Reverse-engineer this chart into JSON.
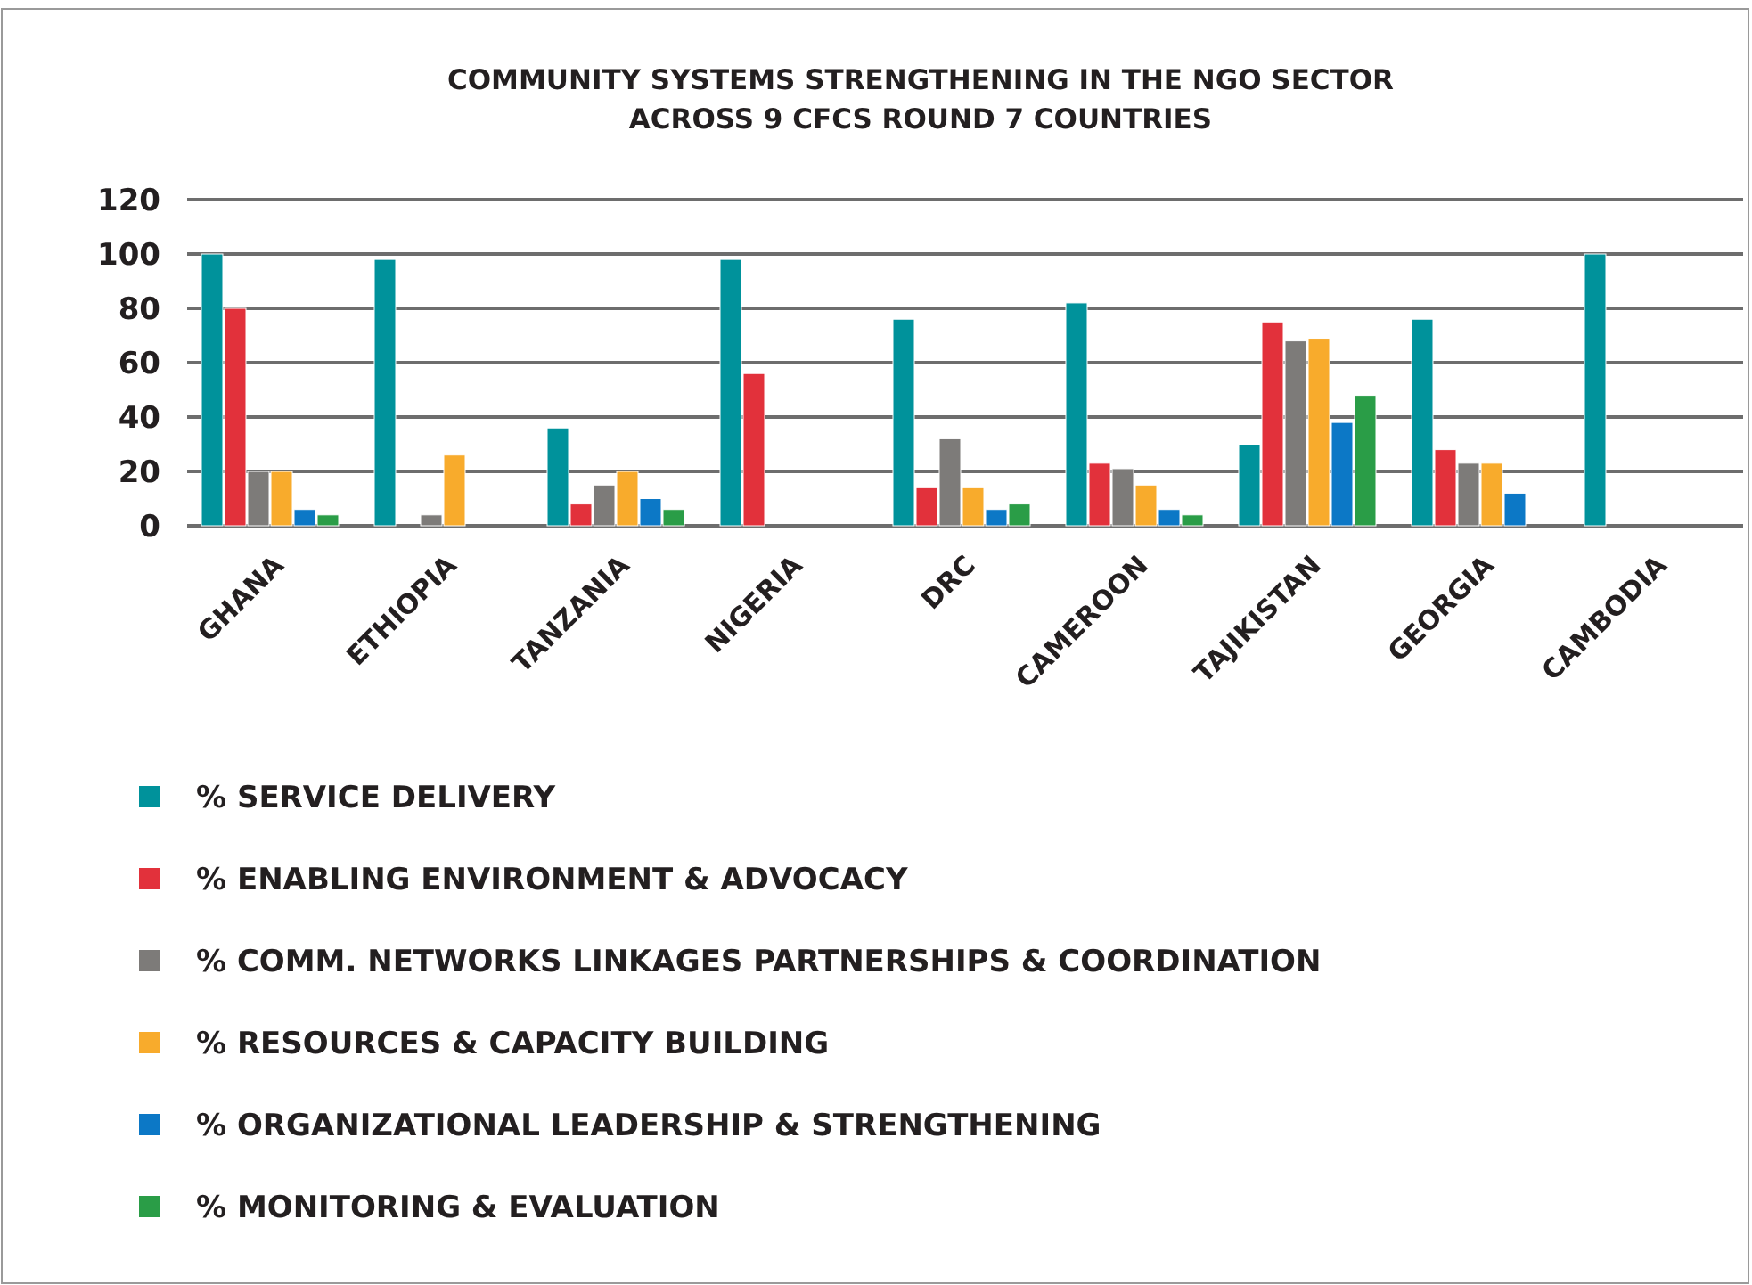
{
  "chart_data": {
    "type": "bar",
    "title": "COMMUNITY SYSTEMS STRENGTHENING IN THE NGO SECTOR\nACROSS 9 CFCS ROUND 7 COUNTRIES",
    "categories": [
      "GHANA",
      "ETHIOPIA",
      "TANZANIA",
      "NIGERIA",
      "DRC",
      "CAMEROON",
      "TAJIKISTAN",
      "GEORGIA",
      "CAMBODIA"
    ],
    "series": [
      {
        "name": "% SERVICE DELIVERY",
        "color": "#00929b",
        "values": [
          100,
          98,
          36,
          98,
          76,
          82,
          30,
          76,
          100
        ]
      },
      {
        "name": "% ENABLING ENVIRONMENT & ADVOCACY",
        "color": "#e2313b",
        "values": [
          80,
          null,
          8,
          56,
          14,
          23,
          75,
          28,
          null
        ]
      },
      {
        "name": "% COMM. NETWORKS LINKAGES PARTNERSHIPS & COORDINATION",
        "color": "#7d7b79",
        "values": [
          20,
          4,
          15,
          null,
          32,
          21,
          68,
          23,
          null
        ]
      },
      {
        "name": "% RESOURCES & CAPACITY BUILDING",
        "color": "#f8ab2c",
        "values": [
          20,
          26,
          20,
          null,
          14,
          15,
          69,
          23,
          null
        ]
      },
      {
        "name": "% ORGANIZATIONAL LEADERSHIP & STRENGTHENING",
        "color": "#0c78c6",
        "values": [
          6,
          null,
          10,
          null,
          6,
          6,
          38,
          12,
          null
        ]
      },
      {
        "name": "% MONITORING & EVALUATION",
        "color": "#2a9d47",
        "values": [
          4,
          null,
          6,
          null,
          8,
          4,
          48,
          null,
          null
        ]
      }
    ],
    "ylim": [
      0,
      120
    ],
    "yticks": [
      0,
      20,
      40,
      60,
      80,
      100,
      120
    ],
    "grid": "y",
    "legend": "bottom"
  }
}
